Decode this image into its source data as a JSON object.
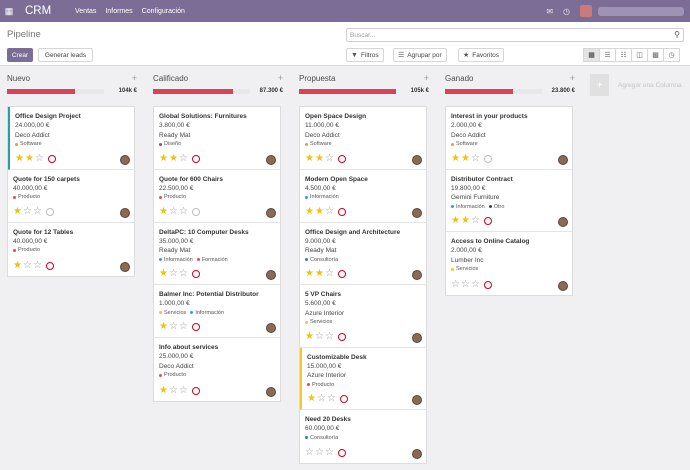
{
  "topbar": {
    "app_name": "CRM",
    "menus": [
      "Ventas",
      "Informes",
      "Configuración"
    ],
    "icons": [
      "apps-icon",
      "chat-icon",
      "clock-icon",
      "avatar"
    ]
  },
  "control": {
    "title": "Pipeline",
    "create_label": "Crear",
    "import_label": "Generar leads",
    "search_placeholder": "Buscar...",
    "filters_label": "Filtros",
    "groupby_label": "Agrupar por",
    "favorites_label": "Favoritos"
  },
  "columns": [
    {
      "title": "Nuevo",
      "total": "104k €",
      "progress": 0.7,
      "cards": [
        {
          "name": "Office Design Project",
          "amount": "24.000,00 €",
          "company": "Deco Addict",
          "tags": [
            {
              "label": "Software",
              "color": "#f0a020"
            }
          ],
          "stars": 2,
          "activity": "red",
          "accent": "teal"
        },
        {
          "name": "Quote for 150 carpets",
          "amount": "40.000,00 €",
          "company": "",
          "tags": [
            {
              "label": "Producto",
              "color": "#e05050"
            }
          ],
          "stars": 1,
          "activity": "grey",
          "accent": ""
        },
        {
          "name": "Quote for 12 Tables",
          "amount": "40.000,00 €",
          "company": "",
          "tags": [
            {
              "label": "Producto",
              "color": "#e05050"
            }
          ],
          "stars": 1,
          "activity": "red",
          "accent": ""
        }
      ]
    },
    {
      "title": "Calificado",
      "total": "87.300 €",
      "progress": 0.82,
      "cards": [
        {
          "name": "Global Solutions: Furnitures",
          "amount": "3.800,00 €",
          "company": "Ready Mat",
          "tags": [
            {
              "label": "Diseño",
              "color": "#7c4dbb"
            }
          ],
          "stars": 2,
          "activity": "red",
          "accent": ""
        },
        {
          "name": "Quote for 600 Chairs",
          "amount": "22.500,00 €",
          "company": "",
          "tags": [
            {
              "label": "Producto",
              "color": "#e05050"
            }
          ],
          "stars": 1,
          "activity": "grey",
          "accent": ""
        },
        {
          "name": "DeltaPC: 10 Computer Desks",
          "amount": "35.000,00 €",
          "company": "Ready Mat",
          "tags": [
            {
              "label": "Información",
              "color": "#3d9bd8"
            },
            {
              "label": "Formación",
              "color": "#e05050"
            }
          ],
          "stars": 1,
          "activity": "red",
          "accent": ""
        },
        {
          "name": "Balmer Inc: Potential Distributor",
          "amount": "1.000,00 €",
          "company": "",
          "tags": [
            {
              "label": "Servicios",
              "color": "#f3c923"
            },
            {
              "label": "Información",
              "color": "#3d9bd8"
            }
          ],
          "stars": 1,
          "activity": "red",
          "accent": ""
        },
        {
          "name": "Info about services",
          "amount": "25.000,00 €",
          "company": "Deco Addict",
          "tags": [
            {
              "label": "Producto",
              "color": "#e05050"
            }
          ],
          "stars": 1,
          "activity": "red",
          "accent": ""
        }
      ]
    },
    {
      "title": "Propuesta",
      "total": "105k €",
      "progress": 1.0,
      "cards": [
        {
          "name": "Open Space Design",
          "amount": "11.000,00 €",
          "company": "Deco Addict",
          "tags": [
            {
              "label": "Software",
              "color": "#f0a020"
            }
          ],
          "stars": 2,
          "activity": "red",
          "accent": ""
        },
        {
          "name": "Modern Open Space",
          "amount": "4.500,00 €",
          "company": "",
          "tags": [
            {
              "label": "Información",
              "color": "#3d9bd8"
            }
          ],
          "stars": 2,
          "activity": "red",
          "accent": ""
        },
        {
          "name": "Office Design and Architecture",
          "amount": "9.000,00 €",
          "company": "Ready Mat",
          "tags": [
            {
              "label": "Consultoría",
              "color": "#2a8a8a"
            }
          ],
          "stars": 2,
          "activity": "red",
          "accent": ""
        },
        {
          "name": "5 VP Chairs",
          "amount": "5.600,00 €",
          "company": "Azure Interior",
          "tags": [
            {
              "label": "Servicios",
              "color": "#f3c923"
            }
          ],
          "stars": 1,
          "activity": "red",
          "accent": ""
        },
        {
          "name": "Customizable Desk",
          "amount": "15.000,00 €",
          "company": "Azure Interior",
          "tags": [
            {
              "label": "Producto",
              "color": "#e05050"
            }
          ],
          "stars": 1,
          "activity": "red",
          "accent": "yellow"
        },
        {
          "name": "Need 20 Desks",
          "amount": "60.000,00 €",
          "company": "",
          "tags": [
            {
              "label": "Consultoría",
              "color": "#2a8a8a"
            }
          ],
          "stars": 0,
          "activity": "red",
          "accent": ""
        }
      ]
    },
    {
      "title": "Ganado",
      "total": "23.800 €",
      "progress": 0.7,
      "cards": [
        {
          "name": "Interest in your products",
          "amount": "2.000,00 €",
          "company": "Deco Addict",
          "tags": [
            {
              "label": "Software",
              "color": "#f0a020"
            }
          ],
          "stars": 2,
          "activity": "grey",
          "accent": ""
        },
        {
          "name": "Distributor Contract",
          "amount": "19.800,00 €",
          "company": "Gemini Furniture",
          "tags": [
            {
              "label": "Información",
              "color": "#3d9bd8"
            },
            {
              "label": "Otro",
              "color": "#444444"
            }
          ],
          "stars": 2,
          "activity": "red",
          "accent": ""
        },
        {
          "name": "Access to Online Catalog",
          "amount": "2.000,00 €",
          "company": "Lumber Inc",
          "tags": [
            {
              "label": "Servicios",
              "color": "#f3c923"
            }
          ],
          "stars": 0,
          "activity": "red",
          "accent": ""
        }
      ]
    }
  ],
  "add_column_label": "Agregar una Columna"
}
